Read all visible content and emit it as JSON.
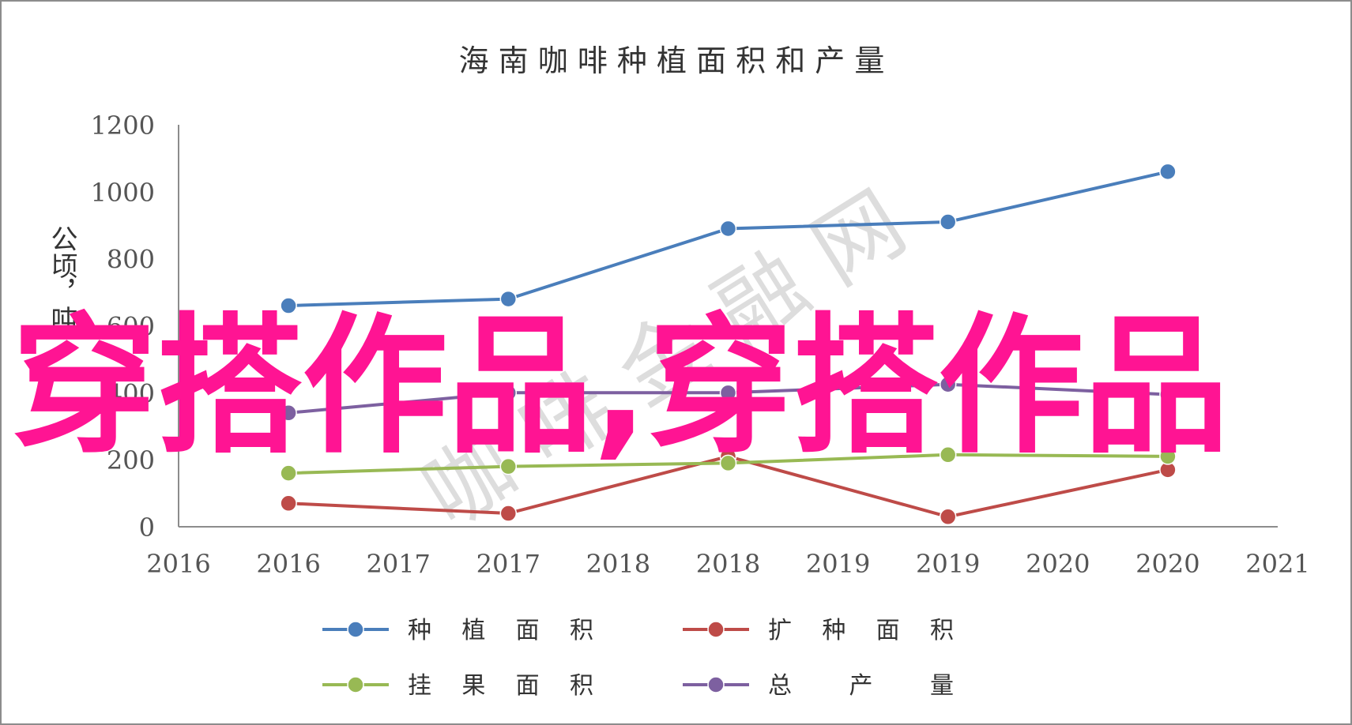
{
  "chart_data": {
    "type": "line",
    "title": "海 南 咖 啡 种 植 面 积 和 产 量",
    "ylabel": "公顷，吨",
    "xlabel": "",
    "x_tick_labels": [
      "2016",
      "2016",
      "2017",
      "2017",
      "2018",
      "2018",
      "2019",
      "2019",
      "2020",
      "2020",
      "2021"
    ],
    "categories": [
      "2016",
      "2017",
      "2018",
      "2019",
      "2020"
    ],
    "ylim": [
      0,
      1200
    ],
    "yticks": [
      0,
      200,
      400,
      600,
      800,
      1000,
      1200
    ],
    "y_tick_labels": [
      "0",
      "200",
      "400",
      "600",
      "800",
      "1000",
      "1200"
    ],
    "grid": false,
    "legend_position": "bottom",
    "series": [
      {
        "name": "种 植 面 积",
        "color": "#4a7ebb",
        "values": [
          660,
          680,
          890,
          910,
          1060
        ]
      },
      {
        "name": "扩 种 面 积",
        "color": "#be4b48",
        "values": [
          70,
          40,
          210,
          30,
          170
        ]
      },
      {
        "name": "挂 果 面 积",
        "color": "#98b954",
        "values": [
          160,
          180,
          190,
          215,
          210
        ]
      },
      {
        "name": "总 产 量",
        "color": "#7d60a0",
        "values": [
          340,
          400,
          400,
          425,
          395
        ]
      }
    ]
  },
  "watermark": {
    "overlay_text": "穿搭作品,穿搭作品",
    "overlay_color": "#ff1493",
    "faint_text": "咖 啡 金 融 网"
  }
}
